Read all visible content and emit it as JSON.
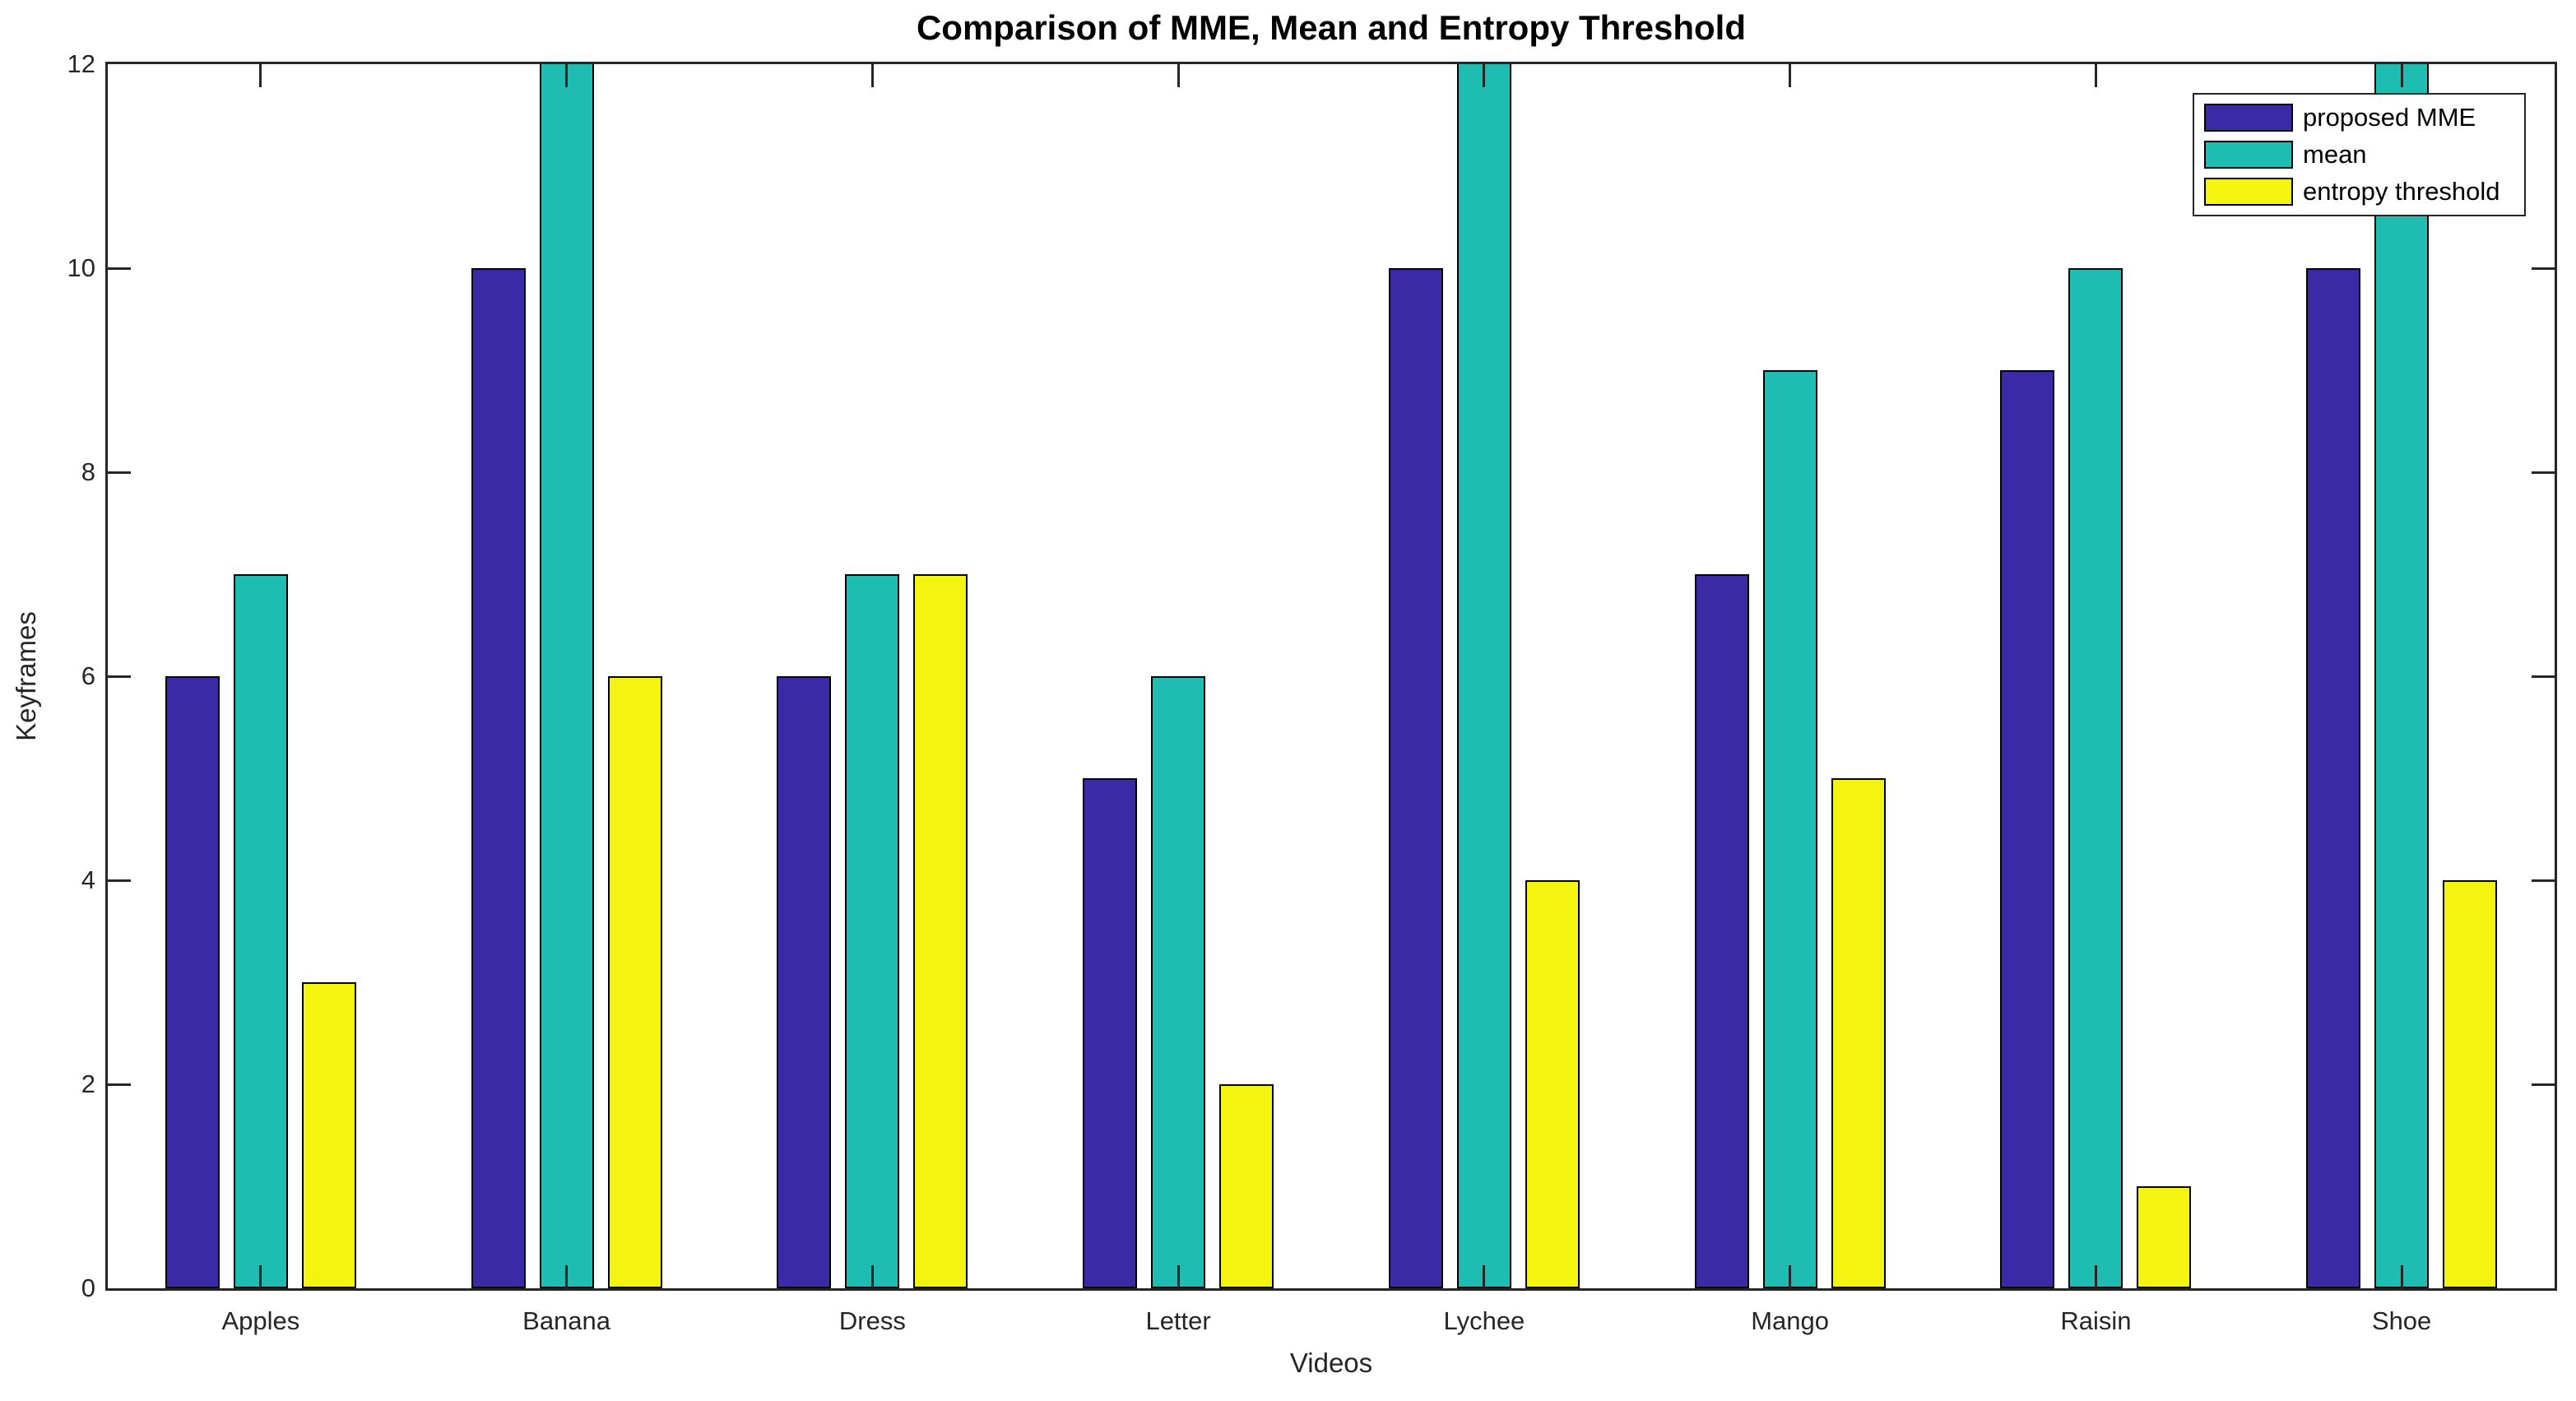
{
  "title": "Comparison of MME, Mean and Entropy Threshold",
  "chart_data": {
    "type": "bar",
    "title": "Comparison of MME, Mean and Entropy Threshold",
    "xlabel": "Videos",
    "ylabel": "Keyframes",
    "categories": [
      "Apples",
      "Banana",
      "Dress",
      "Letter",
      "Lychee",
      "Mango",
      "Raisin",
      "Shoe"
    ],
    "series": [
      {
        "name": "proposed MME",
        "color": "#3A2AA6",
        "values": [
          6,
          10,
          6,
          5,
          10,
          7,
          9,
          10
        ]
      },
      {
        "name": "mean",
        "color": "#1EBCB1",
        "values": [
          7,
          12,
          7,
          6,
          12,
          9,
          10,
          12
        ]
      },
      {
        "name": "entropy threshold",
        "color": "#F4F411",
        "values": [
          3,
          6,
          7,
          2,
          4,
          5,
          1,
          4
        ]
      }
    ],
    "ylim": [
      0,
      12
    ],
    "yticks": [
      0,
      2,
      4,
      6,
      8,
      10,
      12
    ],
    "grid": false,
    "legend_position": "top-right",
    "bar_edge_color": "#000000",
    "axis_color": "#262626",
    "note_bars_at_axis_max": "mean bars for Banana, Lychee and Shoe are clipped at the top of the axis (12)"
  }
}
